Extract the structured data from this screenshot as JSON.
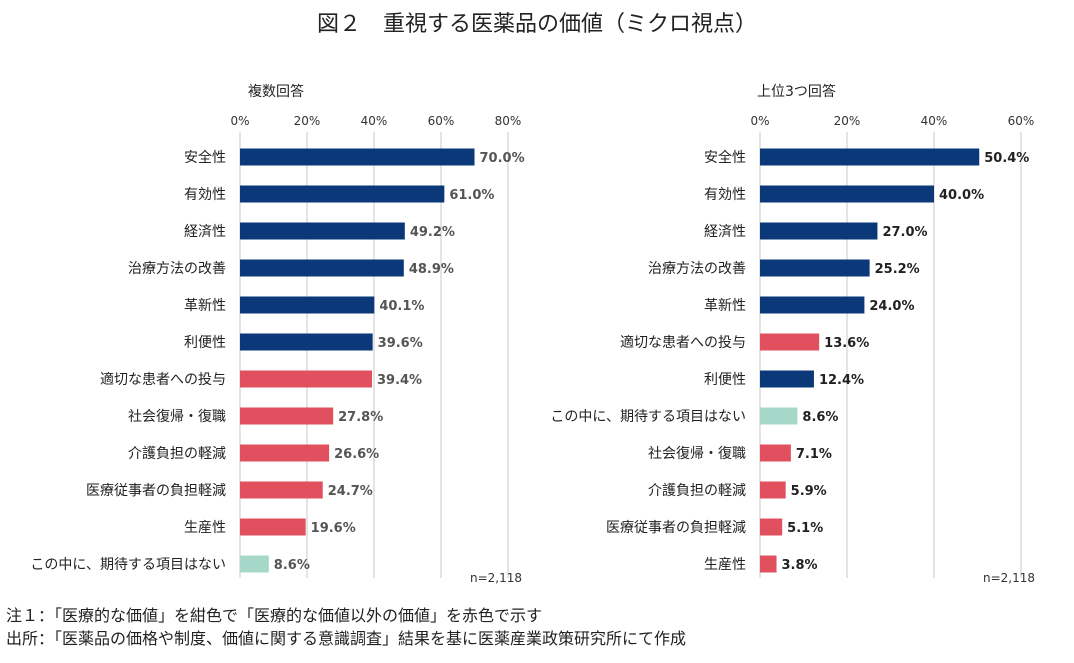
{
  "title": "図２　重視する医薬品の価値（ミクロ視点）",
  "colors": {
    "medical": "#0a3878",
    "non_medical": "#e0505e",
    "none": "#a5d8c8",
    "grid": "#c8c8c8",
    "label_left": "#555555",
    "label_right": "#222222"
  },
  "chart_data": [
    {
      "type": "bar",
      "orientation": "horizontal",
      "title": "複数回答",
      "x_ticks": [
        "0%",
        "20%",
        "40%",
        "60%",
        "80%"
      ],
      "xlim": [
        0,
        80
      ],
      "categories": [
        "安全性",
        "有効性",
        "経済性",
        "治療方法の改善",
        "革新性",
        "利便性",
        "適切な患者への投与",
        "社会復帰・復職",
        "介護負担の軽減",
        "医療従事者の負担軽減",
        "生産性",
        "この中に、期待する項目はない"
      ],
      "values": [
        70.0,
        61.0,
        49.2,
        48.9,
        40.1,
        39.6,
        39.4,
        27.8,
        26.6,
        24.7,
        19.6,
        8.6
      ],
      "value_labels": [
        "70.0%",
        "61.0%",
        "49.2%",
        "48.9%",
        "40.1%",
        "39.6%",
        "39.4%",
        "27.8%",
        "26.6%",
        "24.7%",
        "19.6%",
        "8.6%"
      ],
      "groups": [
        "medical",
        "medical",
        "medical",
        "medical",
        "medical",
        "medical",
        "non_medical",
        "non_medical",
        "non_medical",
        "non_medical",
        "non_medical",
        "none"
      ],
      "n_label": "n=2,118"
    },
    {
      "type": "bar",
      "orientation": "horizontal",
      "title": "上位3つ回答",
      "x_ticks": [
        "0%",
        "20%",
        "40%",
        "60%"
      ],
      "xlim": [
        0,
        60
      ],
      "categories": [
        "安全性",
        "有効性",
        "経済性",
        "治療方法の改善",
        "革新性",
        "適切な患者への投与",
        "利便性",
        "この中に、期待する項目はない",
        "社会復帰・復職",
        "介護負担の軽減",
        "医療従事者の負担軽減",
        "生産性"
      ],
      "values": [
        50.4,
        40.0,
        27.0,
        25.2,
        24.0,
        13.6,
        12.4,
        8.6,
        7.1,
        5.9,
        5.1,
        3.8
      ],
      "value_labels": [
        "50.4%",
        "40.0%",
        "27.0%",
        "25.2%",
        "24.0%",
        "13.6%",
        "12.4%",
        "8.6%",
        "7.1%",
        "5.9%",
        "5.1%",
        "3.8%"
      ],
      "groups": [
        "medical",
        "medical",
        "medical",
        "medical",
        "medical",
        "non_medical",
        "medical",
        "none",
        "non_medical",
        "non_medical",
        "non_medical",
        "non_medical"
      ],
      "n_label": "n=2,118"
    }
  ],
  "notes": [
    "注１：「医療的な価値」を紺色で「医療的な価値以外の価値」を赤色で示す",
    "出所：「医薬品の価格や制度、価値に関する意識調査」結果を基に医薬産業政策研究所にて作成"
  ]
}
